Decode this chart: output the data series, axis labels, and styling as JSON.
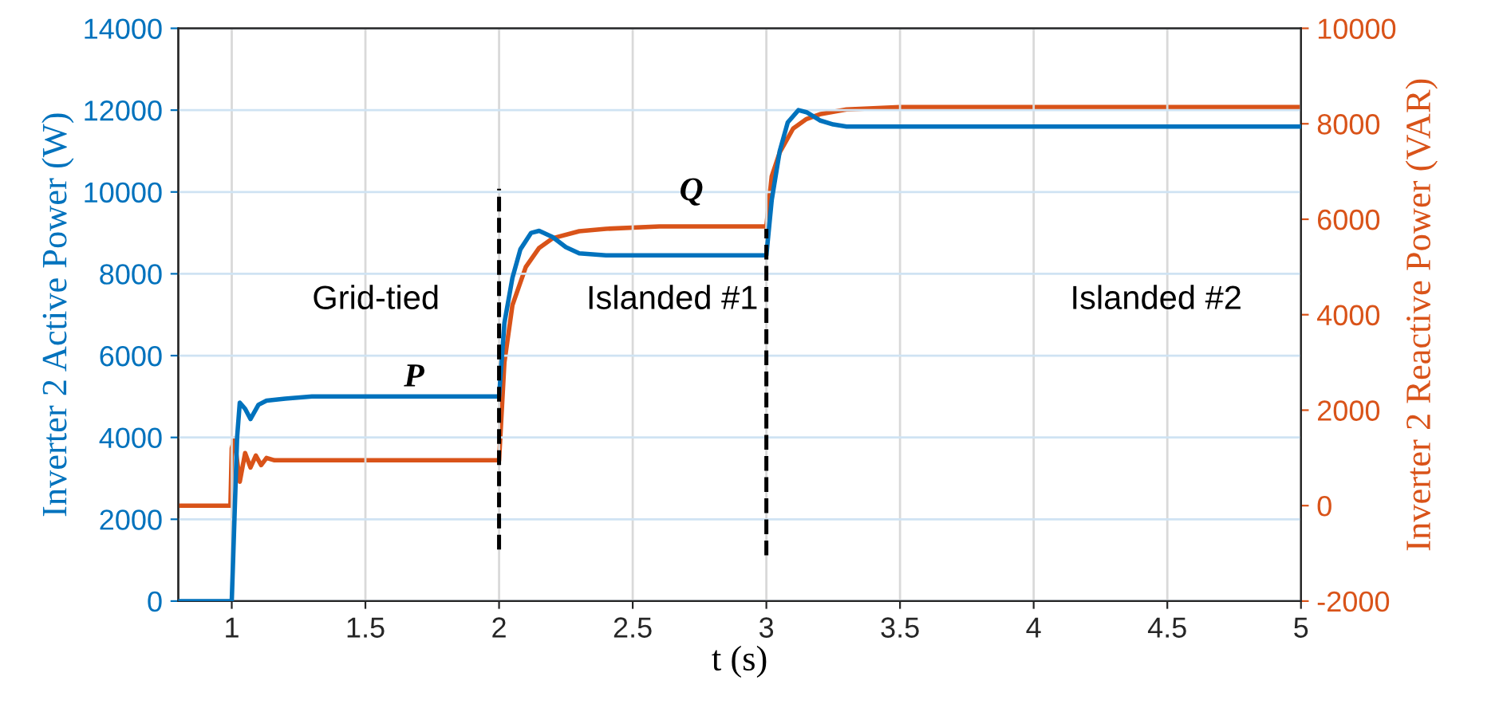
{
  "chart_data": {
    "type": "line",
    "xlabel": "t (s)",
    "ylabel": "Inverter 2 Active Power (W)",
    "y2label": "Inverter 2 Reactive Power (VAR)",
    "xlim": [
      0.8,
      5
    ],
    "xticks": [
      1,
      1.5,
      2,
      2.5,
      3,
      3.5,
      4,
      4.5,
      5
    ],
    "ylim": [
      0,
      14000
    ],
    "yticks": [
      0,
      2000,
      4000,
      6000,
      8000,
      10000,
      12000,
      14000
    ],
    "y2lim": [
      -2000,
      10000
    ],
    "y2ticks": [
      -2000,
      0,
      2000,
      4000,
      6000,
      8000,
      10000
    ],
    "grid": true,
    "legend": false,
    "line_style": "solid",
    "marker": "none",
    "series": [
      {
        "name": "P",
        "color": "#0072bd",
        "x": [
          0.8,
          0.99,
          1.0,
          1.01,
          1.02,
          1.03,
          1.05,
          1.07,
          1.1,
          1.13,
          1.2,
          1.3,
          1.5,
          1.999,
          2.0,
          2.02,
          2.05,
          2.08,
          2.12,
          2.15,
          2.2,
          2.25,
          2.3,
          2.4,
          2.6,
          2.999,
          3.0,
          3.02,
          3.05,
          3.08,
          3.12,
          3.15,
          3.2,
          3.25,
          3.3,
          3.5,
          4,
          5
        ],
        "values": [
          0,
          0,
          0,
          2000,
          4000,
          4850,
          4700,
          4450,
          4800,
          4900,
          4950,
          5000,
          5000,
          5000,
          5000,
          6800,
          7900,
          8600,
          9000,
          9050,
          8900,
          8650,
          8500,
          8450,
          8450,
          8450,
          8450,
          9800,
          11000,
          11700,
          12000,
          11950,
          11750,
          11650,
          11600,
          11600,
          11600,
          11600
        ]
      },
      {
        "name": "Q",
        "color": "#d95319",
        "axis": "y2",
        "x": [
          0.8,
          0.995,
          1.0,
          1.01,
          1.03,
          1.05,
          1.07,
          1.09,
          1.11,
          1.13,
          1.16,
          1.2,
          1.5,
          1.999,
          2.0,
          2.02,
          2.05,
          2.1,
          2.15,
          2.2,
          2.3,
          2.4,
          2.6,
          2.999,
          3.0,
          3.02,
          3.05,
          3.1,
          3.15,
          3.2,
          3.3,
          3.5,
          4,
          5
        ],
        "values": [
          0,
          0,
          1200,
          1400,
          500,
          1100,
          800,
          1050,
          850,
          1000,
          950,
          950,
          950,
          950,
          950,
          3000,
          4200,
          5000,
          5400,
          5600,
          5750,
          5800,
          5850,
          5850,
          5850,
          6900,
          7400,
          7900,
          8100,
          8200,
          8300,
          8350,
          8350,
          8350
        ]
      }
    ],
    "ref_lines": [
      {
        "axis": "x",
        "value": 2,
        "color": "#000000",
        "line_style": "dashed"
      },
      {
        "axis": "x",
        "value": 3,
        "color": "#000000",
        "line_style": "dashed"
      }
    ],
    "annotations": [
      "Grid-tied",
      "Islanded #1",
      "Islanded #2"
    ]
  }
}
